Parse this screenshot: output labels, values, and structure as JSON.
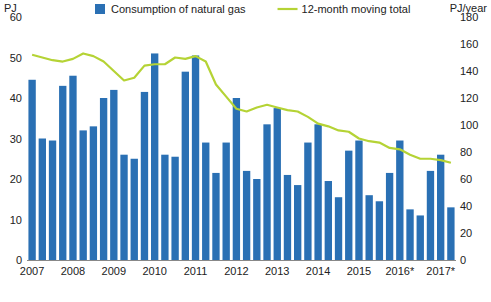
{
  "chart_data": {
    "type": "bar",
    "ylabel": "PJ",
    "y2label": "PJ/year",
    "legend": "top",
    "grid": false,
    "categories": [
      "2007",
      null,
      null,
      null,
      "2008",
      null,
      null,
      null,
      "2009",
      null,
      null,
      null,
      "2010",
      null,
      null,
      null,
      "2011",
      null,
      null,
      null,
      "2012",
      null,
      null,
      null,
      "2013",
      null,
      null,
      null,
      "2014",
      null,
      null,
      null,
      "2015",
      null,
      null,
      null,
      "2016*",
      null,
      null,
      null,
      "2017*",
      null
    ],
    "series": [
      {
        "name": "Consumption of natural gas",
        "type": "bar",
        "color": "#2a70b4",
        "values": [
          44.5,
          30,
          29.5,
          43,
          45.5,
          32,
          33,
          40,
          42,
          26,
          25,
          41.5,
          51,
          26,
          25.5,
          46.5,
          50.5,
          29,
          21.5,
          29,
          40,
          22,
          20,
          33.5,
          37.5,
          21,
          18.5,
          29,
          33.5,
          19.5,
          15.5,
          27,
          29.5,
          16,
          14.5,
          21.5,
          29.5,
          12.5,
          11,
          22,
          26,
          13
        ]
      },
      {
        "name": "12-month moving total",
        "type": "line",
        "axis": "y2",
        "color": "#b5d335",
        "values": [
          152,
          150,
          148,
          147,
          149,
          153,
          151,
          147,
          140,
          133,
          135,
          144,
          145,
          145,
          150,
          149,
          151,
          147,
          130,
          121,
          112,
          110,
          113,
          115,
          113,
          111,
          110,
          106,
          101,
          99,
          96,
          95,
          90,
          88,
          87,
          83,
          82,
          78,
          75,
          75,
          74,
          72
        ]
      }
    ],
    "ylim": [
      0,
      60
    ],
    "yticks": [
      0,
      10,
      20,
      30,
      40,
      50,
      60
    ],
    "y2lim": [
      0,
      180
    ],
    "y2ticks": [
      0,
      20,
      40,
      60,
      80,
      100,
      120,
      140,
      160,
      180
    ]
  }
}
